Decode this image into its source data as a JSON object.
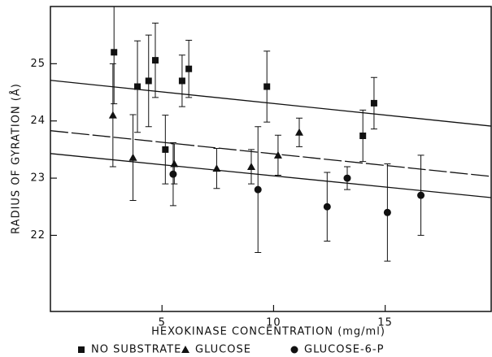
{
  "chart_data": {
    "type": "scatter",
    "xlabel": "HEXOKINASE CONCENTRATION  (mg/ml)",
    "ylabel": "RADIUS OF GYRATION (Å)",
    "xlim": [
      0,
      19.75
    ],
    "ylim": [
      20.67,
      26
    ],
    "xticks": [
      5,
      10,
      15
    ],
    "yticks": [
      22,
      23,
      24,
      25
    ],
    "color": "#111111",
    "series": [
      {
        "name": "NO SUBSTRATE",
        "marker": "square",
        "x": [
          2.85,
          3.9,
          4.4,
          4.7,
          5.15,
          5.9,
          6.2,
          9.7,
          14.0,
          14.5
        ],
        "values": [
          25.2,
          24.6,
          24.7,
          25.06,
          23.5,
          24.7,
          24.91,
          24.6,
          23.74,
          24.31
        ],
        "errors": [
          0.9,
          0.8,
          0.8,
          0.65,
          0.6,
          0.45,
          0.5,
          0.62,
          0.45,
          0.45
        ]
      },
      {
        "name": "GLUCOSE",
        "marker": "triangle",
        "x": [
          2.8,
          3.7,
          5.55,
          7.45,
          9.0,
          10.2,
          11.15
        ],
        "values": [
          24.1,
          23.36,
          23.25,
          23.17,
          23.2,
          23.4,
          23.8
        ],
        "errors": [
          0.9,
          0.75,
          0.35,
          0.35,
          0.3,
          0.35,
          0.25
        ]
      },
      {
        "name": "GLUCOSE-6-P",
        "marker": "circle",
        "x": [
          5.5,
          9.3,
          12.4,
          13.3,
          15.1,
          16.6
        ],
        "values": [
          23.07,
          22.8,
          22.5,
          23.0,
          22.4,
          22.7
        ],
        "errors": [
          0.55,
          1.1,
          0.6,
          0.2,
          0.85,
          0.7
        ]
      }
    ],
    "fit_lines": [
      {
        "x": [
          0,
          19.75
        ],
        "values": [
          24.71,
          23.91
        ],
        "dashed": false
      },
      {
        "x": [
          0,
          19.75
        ],
        "values": [
          23.83,
          23.03
        ],
        "dashed": true
      },
      {
        "x": [
          0,
          19.75
        ],
        "values": [
          23.43,
          22.66
        ],
        "dashed": false
      }
    ]
  }
}
